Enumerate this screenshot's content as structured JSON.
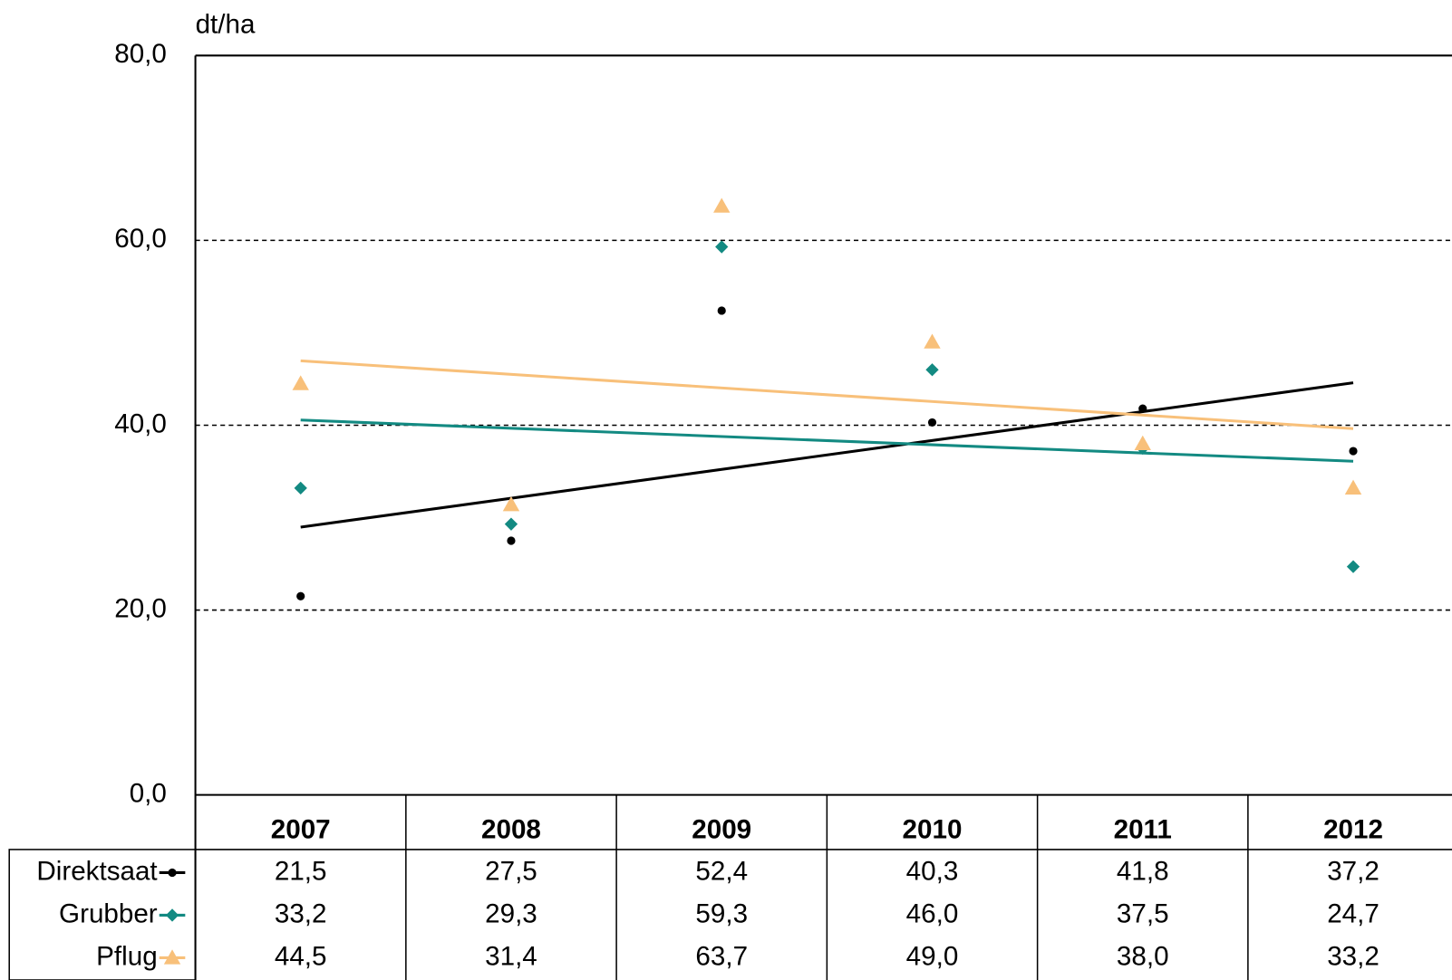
{
  "chart_data": {
    "type": "scatter",
    "trendline": "linear",
    "y_label": "dt/ha",
    "categories": [
      "2007",
      "2008",
      "2009",
      "2010",
      "2011",
      "2012"
    ],
    "series": [
      {
        "name": "Direktsaat",
        "color": "#000000",
        "marker": "dot",
        "values": [
          21.5,
          27.5,
          52.4,
          40.3,
          41.8,
          37.2
        ],
        "value_labels": [
          "21,5",
          "27,5",
          "52,4",
          "40,3",
          "41,8",
          "37,2"
        ]
      },
      {
        "name": "Grubber",
        "color": "#138a82",
        "marker": "diamond",
        "values": [
          33.2,
          29.3,
          59.3,
          46.0,
          37.5,
          24.7
        ],
        "value_labels": [
          "33,2",
          "29,3",
          "59,3",
          "46,0",
          "37,5",
          "24,7"
        ]
      },
      {
        "name": "Pflug",
        "color": "#f8c07a",
        "marker": "triangle",
        "values": [
          44.5,
          31.4,
          63.7,
          49.0,
          38.0,
          33.2
        ],
        "value_labels": [
          "44,5",
          "31,4",
          "63,7",
          "49,0",
          "38,0",
          "33,2"
        ]
      }
    ],
    "ylim": [
      0,
      80
    ],
    "yticks": [
      {
        "value": 0,
        "label": "0,0"
      },
      {
        "value": 20,
        "label": "20,0"
      },
      {
        "value": 40,
        "label": "40,0"
      },
      {
        "value": 60,
        "label": "60,0"
      },
      {
        "value": 80,
        "label": "80,0"
      }
    ],
    "grid": true
  }
}
